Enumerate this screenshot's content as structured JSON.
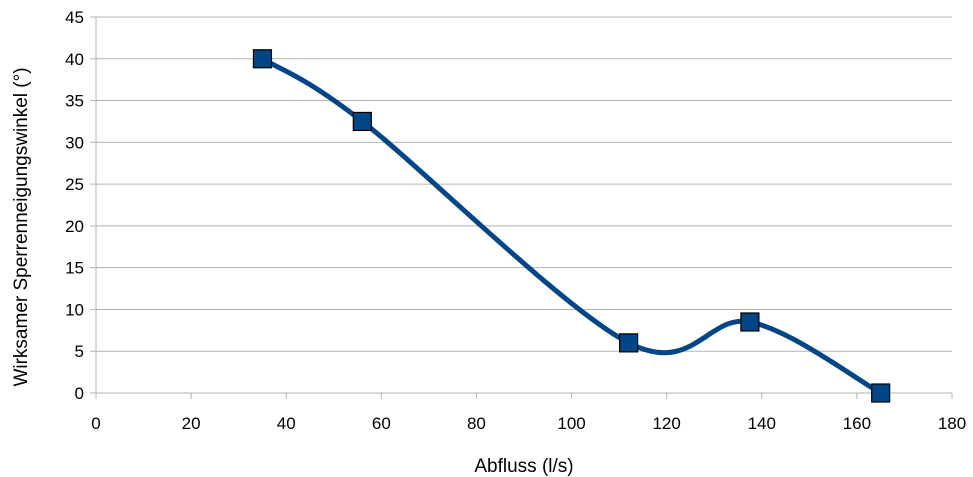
{
  "chart_data": {
    "type": "line",
    "title": "",
    "xlabel": "Abfluss (l/s)",
    "ylabel": "Wirksamer Sperrenneigungswinkel (°)",
    "xlim": [
      0,
      180
    ],
    "ylim": [
      0,
      45
    ],
    "xticks": [
      0,
      20,
      40,
      60,
      80,
      100,
      120,
      140,
      160,
      180
    ],
    "yticks": [
      0,
      5,
      10,
      15,
      20,
      25,
      30,
      35,
      40,
      45
    ],
    "grid": "horizontal",
    "smooth": true,
    "marker": "square",
    "colors": {
      "line": "#004586",
      "marker_fill": "#004586",
      "marker_edge": "#000000",
      "grid": "#b3b3b3"
    },
    "series": [
      {
        "x": [
          35,
          56,
          112,
          137.5,
          165
        ],
        "y": [
          40,
          32.5,
          6,
          8.5,
          0
        ]
      }
    ]
  }
}
